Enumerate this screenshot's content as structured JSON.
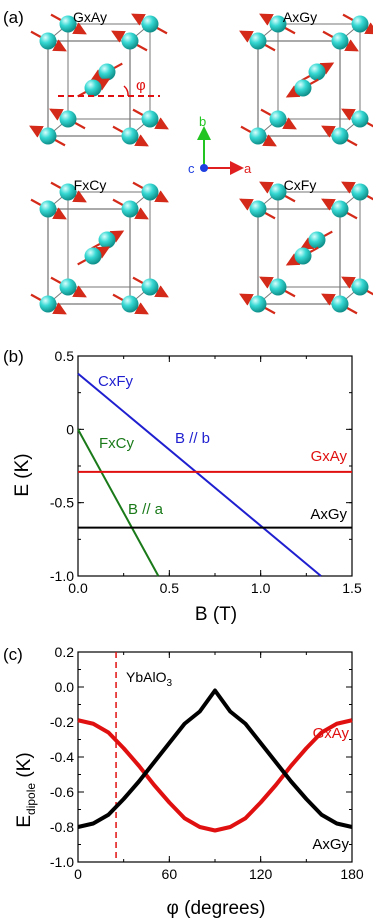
{
  "figure": {
    "panel_a": {
      "label": "(a)",
      "structures": [
        "GxAy",
        "AxGy",
        "FxCy",
        "CxFy"
      ],
      "angle_symbol": "φ",
      "axes": {
        "b": "b",
        "c": "c",
        "a": "a"
      },
      "colors": {
        "atom": "#2fd3cf",
        "spin": "#d42a1a",
        "b_axis": "#22c422",
        "a_axis": "#e02020",
        "c_axis": "#1f3fe0",
        "dashed": "#e01010"
      }
    },
    "panel_b": {
      "label": "(b)",
      "line_labels": {
        "cxfy": "CxFy",
        "bb": "B // b",
        "fxcy": "FxCy",
        "ba": "B // a",
        "gxay": "GxAy",
        "axgy": "AxGy"
      }
    },
    "panel_c": {
      "label": "(c)",
      "marker_label": "YbAlO",
      "marker_sub": "3",
      "curve_labels": {
        "gxay": "GxAy",
        "axgy": "AxGy"
      },
      "ylabel_main": "E",
      "ylabel_sub": "dipole",
      "ylabel_unit": " (K)"
    }
  },
  "chart_data": [
    {
      "type": "line",
      "title": "",
      "xlabel": "B (T)",
      "ylabel": "E (K)",
      "xlim": [
        0.0,
        1.5
      ],
      "ylim": [
        -1.0,
        0.5
      ],
      "xticks": [
        "0.0",
        "0.5",
        "1.0",
        "1.5"
      ],
      "yticks": [
        "0.5",
        "0",
        "-0.5",
        "-1.0"
      ],
      "series": [
        {
          "name": "CxFy",
          "color": "#1f1fd0",
          "x": [
            0.0,
            1.33
          ],
          "y": [
            0.38,
            -1.0
          ]
        },
        {
          "name": "FxCy",
          "color": "#1a7a1a",
          "x": [
            0.0,
            0.44
          ],
          "y": [
            0.0,
            -1.0
          ]
        },
        {
          "name": "GxAy",
          "color": "#e01010",
          "x": [
            0.0,
            1.5
          ],
          "y": [
            -0.29,
            -0.29
          ]
        },
        {
          "name": "AxGy",
          "color": "#000000",
          "x": [
            0.0,
            1.5
          ],
          "y": [
            -0.67,
            -0.67
          ]
        }
      ]
    },
    {
      "type": "line",
      "title": "",
      "xlabel": "φ (degrees)",
      "ylabel": "Edipole (K)",
      "xlim": [
        0,
        180
      ],
      "ylim": [
        -1.0,
        0.2
      ],
      "xticks": [
        "0",
        "60",
        "120",
        "180"
      ],
      "yticks": [
        "0.2",
        "0.0",
        "-0.2",
        "-0.4",
        "-0.6",
        "-0.8",
        "-1.0"
      ],
      "marker_x": 25,
      "series": [
        {
          "name": "GxAy",
          "color": "#e01010",
          "x": [
            0,
            10,
            20,
            30,
            40,
            50,
            60,
            70,
            80,
            90,
            100,
            110,
            120,
            130,
            140,
            150,
            160,
            170,
            180
          ],
          "y": [
            -0.19,
            -0.21,
            -0.26,
            -0.35,
            -0.45,
            -0.56,
            -0.66,
            -0.75,
            -0.8,
            -0.82,
            -0.8,
            -0.75,
            -0.66,
            -0.56,
            -0.45,
            -0.35,
            -0.26,
            -0.21,
            -0.19
          ]
        },
        {
          "name": "AxGy",
          "color": "#000000",
          "x": [
            0,
            10,
            20,
            30,
            40,
            50,
            60,
            70,
            80,
            90,
            100,
            110,
            120,
            130,
            140,
            150,
            160,
            170,
            180
          ],
          "y": [
            -0.8,
            -0.78,
            -0.73,
            -0.64,
            -0.54,
            -0.43,
            -0.32,
            -0.21,
            -0.14,
            -0.02,
            -0.14,
            -0.21,
            -0.32,
            -0.43,
            -0.54,
            -0.64,
            -0.73,
            -0.78,
            -0.8
          ]
        }
      ]
    }
  ]
}
